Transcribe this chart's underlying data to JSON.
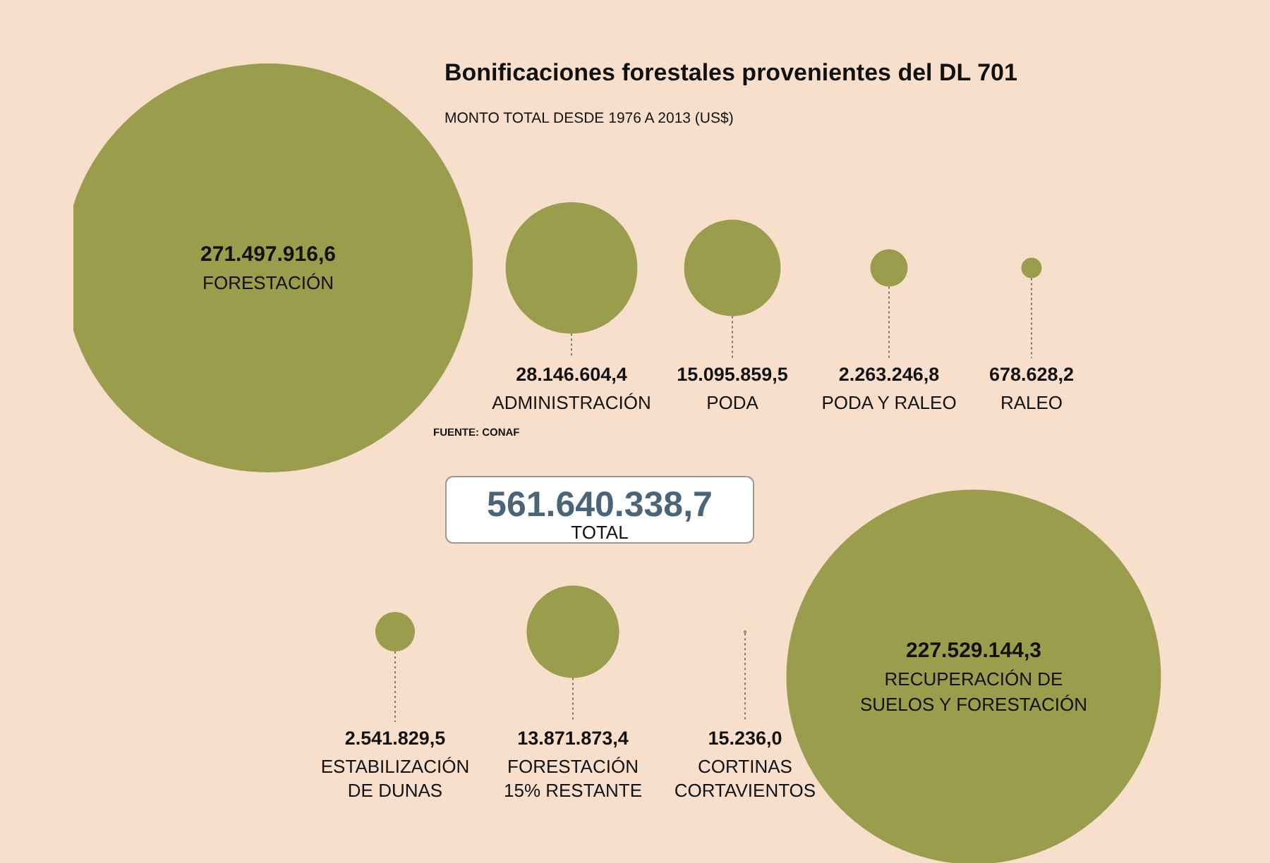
{
  "chart_data": {
    "type": "other",
    "title": "Bonificaciones forestales provenientes del DL 701",
    "subtitle": "MONTO TOTAL DESDE 1976 A 2013 (US$)",
    "categories": [
      "FORESTACIÓN",
      "ADMINISTRACIÓN",
      "PODA",
      "PODA Y RALEO",
      "RALEO",
      "ESTABILIZACIÓN\nDE DUNAS",
      "FORESTACIÓN\n15% RESTANTE",
      "CORTINAS\nCORTAVIENTOS",
      "RECUPERACIÓN DE\nSUELOS Y FORESTACIÓN"
    ],
    "values": [
      271497916.6,
      28146604.4,
      15095859.5,
      2263246.8,
      678628.2,
      2541829.5,
      13871873.4,
      15236.0,
      227529144.3
    ],
    "color": "#999d4c",
    "value_labels": [
      "271.497.916,6",
      "28.146.604,4",
      "15.095.859,5",
      "2.263.246,8",
      "678.628,2",
      "2.541.829,5",
      "13.871.873,4",
      "15.236,0",
      "227.529.144,3"
    ],
    "annotations": [
      "FUENTE: CONAF",
      "561.640.338,7",
      "TOTAL"
    ]
  }
}
